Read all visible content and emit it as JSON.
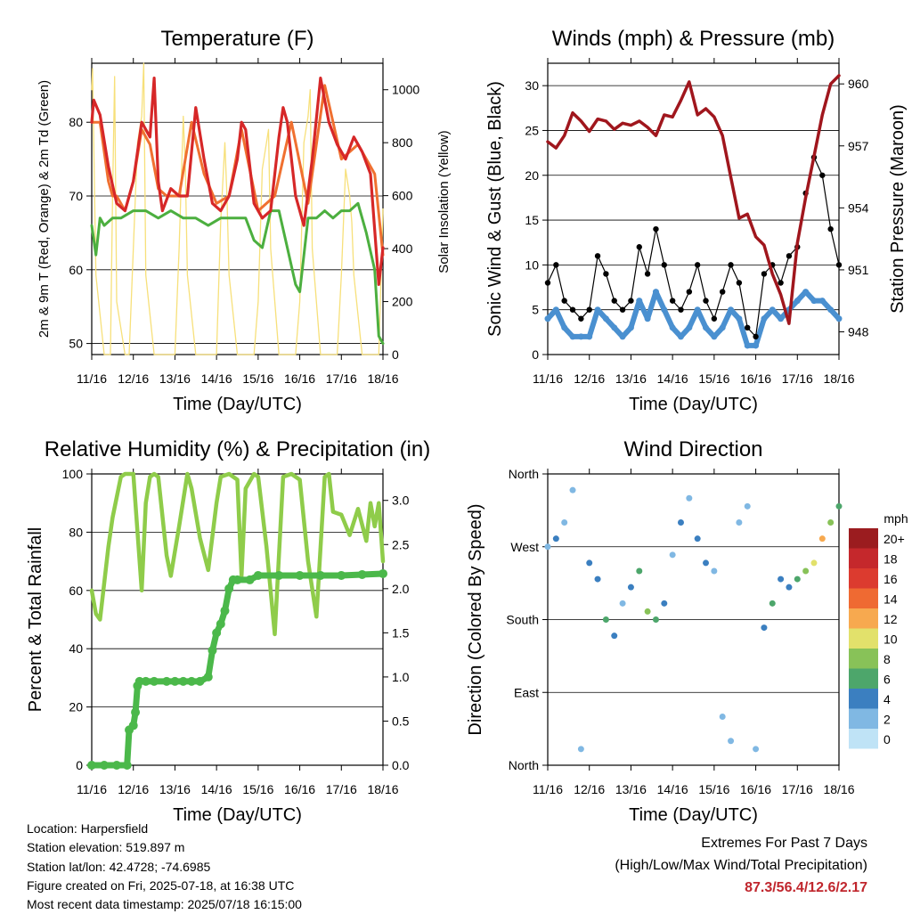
{
  "time_ticks": [
    "11/16",
    "12/16",
    "13/16",
    "14/16",
    "15/16",
    "16/16",
    "17/16",
    "18/16"
  ],
  "footer": {
    "location": "Location: Harpersfield",
    "elevation": "Station elevation: 519.897 m",
    "latlon": "Station lat/lon: 42.4728; -74.6985",
    "created": "Figure created on Fri, 2025-07-18, at 16:38 UTC",
    "recent": "Most recent data timestamp: 2025/07/18 16:15:00",
    "extremes_title": "Extremes For Past 7 Days",
    "extremes_sub": "(High/Low/Max Wind/Total Precipitation)",
    "extremes_values": "87.3/56.4/12.6/2.17"
  },
  "colors": {
    "temp2m": "#d62728",
    "temp9m": "#f07030",
    "dewpoint": "#4caf3f",
    "solar": "#f7e07a",
    "gust": "#000000",
    "wind": "#4a90d0",
    "pressure": "#a0161d",
    "rh": "#8fcc4a",
    "precip": "#4bb84a"
  },
  "chart_data": [
    {
      "type": "line",
      "title": "Temperature (F)",
      "xlabel": "Time (Day/UTC)",
      "ylabel": "2m & 9m T (Red, Orange) & 2m Td (Green)",
      "y2label": "Solar Insolation (Yellow)",
      "xlim": [
        0,
        7
      ],
      "ylim": [
        48.5,
        88
      ],
      "y2lim": [
        0,
        1100
      ],
      "yticks": [
        50,
        60,
        70,
        80
      ],
      "y2ticks": [
        0,
        200,
        400,
        600,
        800,
        1000
      ],
      "series": [
        {
          "name": "2m T",
          "x": [
            0,
            0.05,
            0.2,
            0.4,
            0.6,
            0.8,
            1.0,
            1.2,
            1.4,
            1.5,
            1.6,
            1.7,
            1.9,
            2.1,
            2.3,
            2.5,
            2.7,
            2.9,
            3.1,
            3.3,
            3.5,
            3.6,
            3.7,
            3.9,
            4.1,
            4.3,
            4.5,
            4.6,
            4.7,
            4.9,
            5.1,
            5.3,
            5.5,
            5.7,
            5.9,
            6.1,
            6.3,
            6.5,
            6.7,
            6.9,
            7.0
          ],
          "y": [
            80,
            83,
            81,
            74,
            69,
            68,
            72,
            80,
            78,
            86,
            72,
            68,
            71,
            70,
            70,
            82,
            75,
            69,
            68,
            70,
            75,
            80,
            79,
            69,
            67,
            68,
            78,
            82,
            80,
            70,
            66,
            75,
            86,
            80,
            77,
            75,
            78,
            76,
            73,
            58,
            63
          ]
        },
        {
          "name": "9m T",
          "x": [
            0,
            0.2,
            0.4,
            0.5,
            0.6,
            0.8,
            1.0,
            1.2,
            1.4,
            1.6,
            1.8,
            2.1,
            2.4,
            2.7,
            3.0,
            3.3,
            3.6,
            4.0,
            4.4,
            4.8,
            5.2,
            5.6,
            6.0,
            6.4,
            6.8,
            7.0
          ],
          "y": [
            80,
            80,
            72,
            70,
            70,
            68,
            72,
            79,
            77,
            71,
            70,
            70,
            80,
            73,
            69,
            70,
            79,
            68,
            70,
            80,
            69,
            85,
            75,
            77,
            73,
            62
          ]
        },
        {
          "name": "2m Td",
          "x": [
            0,
            0.1,
            0.2,
            0.3,
            0.5,
            0.7,
            1.0,
            1.3,
            1.6,
            1.9,
            2.2,
            2.5,
            2.8,
            3.1,
            3.4,
            3.7,
            3.9,
            4.1,
            4.3,
            4.5,
            4.7,
            4.9,
            5.0,
            5.2,
            5.4,
            5.6,
            5.8,
            6.0,
            6.2,
            6.4,
            6.6,
            6.8,
            6.9,
            7.0
          ],
          "y": [
            66,
            62,
            67,
            66,
            67,
            67,
            68,
            68,
            67,
            68,
            67,
            67,
            66,
            67,
            67,
            67,
            64,
            63,
            68,
            68,
            63,
            58,
            57,
            67,
            67,
            68,
            67,
            68,
            68,
            69,
            65,
            60,
            51,
            50
          ]
        },
        {
          "name": "Solar Insolation",
          "x": [
            0,
            0.02,
            0.1,
            0.3,
            0.45,
            0.5,
            0.55,
            0.6,
            0.8,
            0.9,
            1.0,
            1.1,
            1.2,
            1.25,
            1.3,
            1.5,
            1.6,
            1.9,
            2.0,
            2.1,
            2.2,
            2.25,
            2.3,
            2.5,
            2.9,
            3.0,
            3.1,
            3.2,
            3.25,
            3.3,
            3.5,
            3.6,
            3.9,
            4.0,
            4.1,
            4.2,
            4.25,
            4.3,
            4.5,
            4.6,
            4.9,
            5.0,
            5.1,
            5.2,
            5.25,
            5.3,
            5.5,
            5.6,
            5.9,
            6.0,
            6.1,
            6.2,
            6.25,
            6.3,
            6.5,
            6.6,
            6.9,
            7.0
          ],
          "y": [
            1000,
            1080,
            300,
            0,
            0,
            600,
            1050,
            200,
            0,
            0,
            400,
            800,
            900,
            1100,
            300,
            0,
            0,
            0,
            0,
            400,
            900,
            700,
            300,
            0,
            0,
            0,
            500,
            800,
            600,
            300,
            0,
            0,
            0,
            200,
            700,
            800,
            850,
            400,
            0,
            0,
            0,
            200,
            800,
            900,
            1000,
            400,
            0,
            0,
            0,
            300,
            700,
            600,
            500,
            300,
            0,
            0,
            0,
            550
          ]
        }
      ]
    },
    {
      "type": "scatter",
      "title": "Winds (mph) & Pressure (mb)",
      "xlabel": "Time (Day/UTC)",
      "ylabel": "Sonic Wind & Gust (Blue, Black)",
      "y2label": "Station Pressure (Maroon)",
      "xlim": [
        0,
        7
      ],
      "ylim": [
        0,
        32.5
      ],
      "y2lim": [
        946.9,
        961.0
      ],
      "yticks": [
        0,
        5,
        10,
        15,
        20,
        25,
        30
      ],
      "y2ticks": [
        948,
        951,
        954,
        957,
        960
      ],
      "series": [
        {
          "name": "Gust",
          "x": [
            0,
            0.2,
            0.4,
            0.6,
            0.8,
            1.0,
            1.2,
            1.4,
            1.6,
            1.8,
            2.0,
            2.2,
            2.4,
            2.6,
            2.8,
            3.0,
            3.2,
            3.4,
            3.6,
            3.8,
            4.0,
            4.2,
            4.4,
            4.6,
            4.8,
            5.0,
            5.2,
            5.4,
            5.6,
            5.8,
            6.0,
            6.2,
            6.4,
            6.6,
            6.8,
            7.0
          ],
          "y": [
            8,
            10,
            6,
            5,
            4,
            5,
            11,
            9,
            6,
            5,
            6,
            12,
            9,
            14,
            10,
            6,
            5,
            7,
            10,
            6,
            4,
            7,
            10,
            8,
            3,
            2,
            9,
            10,
            8,
            11,
            12,
            18,
            22,
            20,
            14,
            10
          ]
        },
        {
          "name": "Wind",
          "x": [
            0,
            0.2,
            0.4,
            0.6,
            0.8,
            1.0,
            1.2,
            1.4,
            1.6,
            1.8,
            2.0,
            2.2,
            2.4,
            2.6,
            2.8,
            3.0,
            3.2,
            3.4,
            3.6,
            3.8,
            4.0,
            4.2,
            4.4,
            4.6,
            4.8,
            5.0,
            5.2,
            5.4,
            5.6,
            5.8,
            6.0,
            6.2,
            6.4,
            6.6,
            6.8,
            7.0
          ],
          "y": [
            4,
            5,
            3,
            2,
            2,
            2,
            5,
            4,
            3,
            2,
            3,
            6,
            4,
            7,
            5,
            3,
            2,
            3,
            5,
            3,
            2,
            3,
            5,
            4,
            1,
            1,
            4,
            5,
            4,
            5,
            6,
            7,
            6,
            6,
            5,
            4
          ]
        },
        {
          "name": "Station Pressure",
          "x": [
            0,
            0.2,
            0.4,
            0.6,
            0.8,
            1.0,
            1.2,
            1.4,
            1.6,
            1.8,
            2.0,
            2.2,
            2.4,
            2.6,
            2.8,
            3.0,
            3.2,
            3.4,
            3.6,
            3.8,
            4.0,
            4.2,
            4.4,
            4.6,
            4.8,
            5.0,
            5.2,
            5.4,
            5.6,
            5.8,
            6.0,
            6.2,
            6.4,
            6.6,
            6.8,
            7.0
          ],
          "y": [
            957.2,
            956.9,
            957.5,
            958.6,
            958.2,
            957.7,
            958.3,
            958.2,
            957.8,
            958.1,
            958.0,
            958.2,
            957.9,
            957.5,
            958.5,
            958.4,
            959.2,
            960.1,
            958.5,
            958.8,
            958.4,
            957.5,
            955.5,
            953.5,
            953.7,
            952.6,
            952.2,
            950.8,
            949.8,
            948.4,
            952.3,
            954.5,
            956.5,
            958.5,
            960.0,
            960.4
          ]
        }
      ]
    },
    {
      "type": "line",
      "title": "Relative Humidity (%) & Precipitation (in)",
      "xlabel": "Time (Day/UTC)",
      "ylabel": "Percent & Total Rainfall",
      "xlim": [
        0,
        7
      ],
      "ylim": [
        0,
        100
      ],
      "y2lim": [
        0,
        3.3
      ],
      "yticks": [
        0,
        20,
        40,
        60,
        80,
        100
      ],
      "y2ticks": [
        0.0,
        0.5,
        1.0,
        1.5,
        2.0,
        2.5,
        3.0
      ],
      "series": [
        {
          "name": "RH",
          "x": [
            0,
            0.1,
            0.2,
            0.4,
            0.5,
            0.7,
            0.8,
            1.0,
            1.1,
            1.2,
            1.3,
            1.4,
            1.5,
            1.6,
            1.8,
            1.9,
            2.1,
            2.3,
            2.4,
            2.6,
            2.8,
            3.0,
            3.1,
            3.3,
            3.5,
            3.6,
            3.7,
            3.9,
            4.0,
            4.2,
            4.4,
            4.6,
            4.8,
            5.0,
            5.2,
            5.4,
            5.6,
            5.7,
            5.8,
            6.0,
            6.2,
            6.4,
            6.6,
            6.7,
            6.8,
            6.9,
            7.0
          ],
          "y": [
            60,
            52,
            50,
            75,
            85,
            99,
            100,
            100,
            80,
            60,
            90,
            99,
            100,
            99,
            72,
            65,
            82,
            100,
            95,
            78,
            67,
            90,
            99,
            100,
            98,
            65,
            95,
            100,
            99,
            75,
            45,
            99,
            100,
            98,
            70,
            51,
            99,
            100,
            87,
            86,
            79,
            88,
            77,
            90,
            82,
            90,
            70
          ]
        },
        {
          "name": "Precipitation",
          "x": [
            0,
            0.3,
            0.6,
            0.85,
            0.9,
            1.0,
            1.05,
            1.1,
            1.15,
            1.3,
            1.5,
            1.8,
            2.0,
            2.2,
            2.4,
            2.6,
            2.8,
            2.9,
            3.0,
            3.1,
            3.2,
            3.3,
            3.4,
            3.5,
            3.8,
            4.0,
            4.5,
            5.0,
            5.5,
            6.0,
            6.5,
            7.0
          ],
          "y": [
            0,
            0,
            0,
            0,
            0.4,
            0.45,
            0.6,
            0.9,
            0.95,
            0.95,
            0.95,
            0.95,
            0.95,
            0.95,
            0.95,
            0.95,
            1.0,
            1.3,
            1.5,
            1.6,
            1.75,
            2.0,
            2.1,
            2.1,
            2.1,
            2.15,
            2.15,
            2.15,
            2.15,
            2.15,
            2.16,
            2.17
          ]
        }
      ]
    },
    {
      "type": "scatter",
      "title": "Wind Direction",
      "xlabel": "Time (Day/UTC)",
      "ylabel": "Direction (Colored By Speed)",
      "xlim": [
        0,
        7
      ],
      "ylim": [
        0,
        360
      ],
      "ytick_values": [
        0,
        90,
        180,
        270,
        360
      ],
      "yticks": [
        "North",
        "East",
        "South",
        "West",
        "North"
      ],
      "legend": {
        "title": "mph",
        "labels": [
          "20+",
          "18",
          "16",
          "14",
          "12",
          "10",
          "8",
          "6",
          "4",
          "2",
          "0"
        ],
        "colors": [
          "#9b1c1f",
          "#c5282c",
          "#dc3b2f",
          "#ef6a32",
          "#f7a94f",
          "#e2e16b",
          "#88c258",
          "#4da66b",
          "#3b7fc0",
          "#80b8e3",
          "#bfe3f6"
        ]
      },
      "series": [
        {
          "name": "Direction",
          "x": [
            0,
            0.2,
            0.4,
            0.6,
            0.8,
            1.0,
            1.2,
            1.4,
            1.6,
            1.8,
            2.0,
            2.2,
            2.4,
            2.6,
            2.8,
            3.0,
            3.2,
            3.4,
            3.6,
            3.8,
            4.0,
            4.2,
            4.4,
            4.6,
            4.8,
            5.0,
            5.2,
            5.4,
            5.6,
            5.8,
            6.0,
            6.2,
            6.4,
            6.6,
            6.8,
            7.0
          ],
          "y": [
            270,
            280,
            300,
            340,
            20,
            250,
            230,
            180,
            160,
            200,
            220,
            240,
            190,
            180,
            200,
            260,
            300,
            330,
            280,
            250,
            240,
            60,
            30,
            300,
            320,
            20,
            170,
            200,
            230,
            220,
            230,
            240,
            250,
            280,
            300,
            320
          ],
          "speed": [
            2,
            4,
            1,
            1,
            1,
            3,
            4,
            5,
            3,
            2,
            4,
            5,
            7,
            6,
            3,
            2,
            3,
            2,
            4,
            3,
            1,
            1,
            1,
            1,
            2,
            1,
            3,
            5,
            4,
            4,
            5,
            8,
            10,
            12,
            8,
            5
          ]
        }
      ]
    }
  ]
}
